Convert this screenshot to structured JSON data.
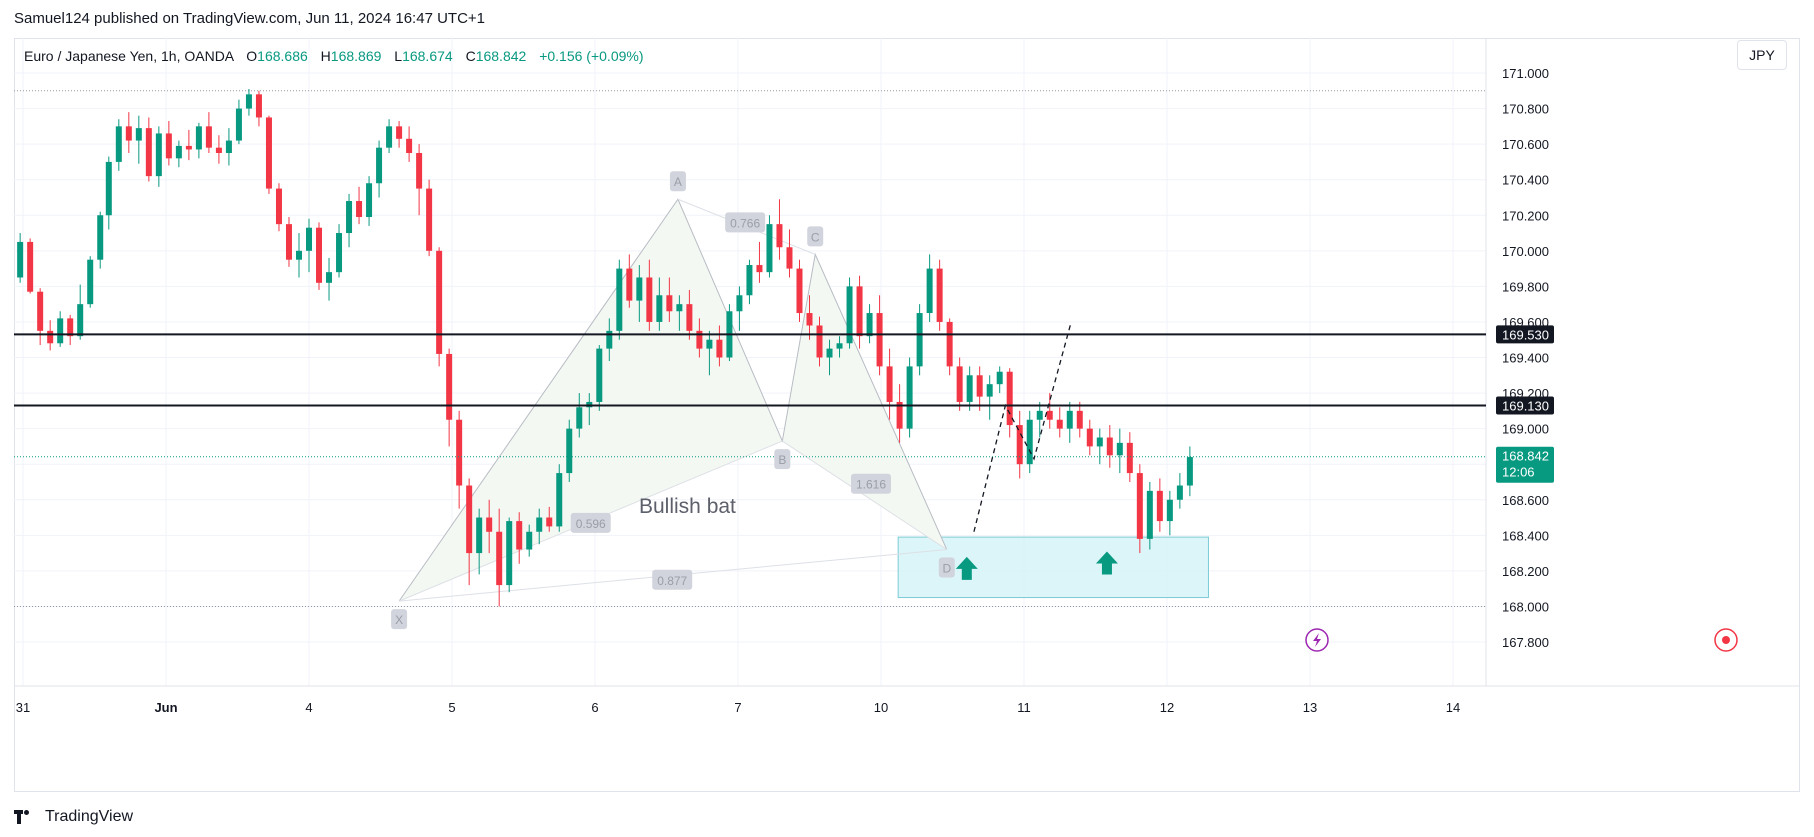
{
  "header": {
    "published": "Samuel124 published on TradingView.com, Jun 11, 2024 16:47 UTC+1"
  },
  "legend": {
    "symbol": "Euro / Japanese Yen, 1h, OANDA",
    "o_label": "O",
    "o_value": "168.686",
    "h_label": "H",
    "h_value": "168.869",
    "l_label": "L",
    "l_value": "168.674",
    "c_label": "C",
    "c_value": "168.842",
    "change": "+0.156 (+0.09%)"
  },
  "currency_button": "JPY",
  "brand": {
    "name": "TradingView"
  },
  "colors": {
    "up": "#089981",
    "down": "#F23645",
    "zone_fill": "#D3F3F7",
    "zone_border": "#7DCBD6",
    "pattern_fill": "#F4F8F2",
    "pattern_line": "#B8BCC4",
    "label_bg": "#D1D4DC",
    "label_text": "#9A9EA8",
    "hline": "#131722",
    "price_tag": "#089981",
    "alert_icon": "#9C27B0",
    "record_icon": "#F23645"
  },
  "chart_data": {
    "type": "candlestick",
    "instrument": "EUR/JPY",
    "timeframe": "1h",
    "y_axis": {
      "min": 167.7,
      "max": 171.1,
      "ticks": [
        "167.800",
        "168.000",
        "168.200",
        "168.400",
        "168.600",
        "168.800",
        "169.000",
        "169.200",
        "169.400",
        "169.600",
        "169.800",
        "170.000",
        "170.200",
        "170.400",
        "170.600",
        "170.800",
        "171.000"
      ]
    },
    "x_axis": {
      "labels": [
        {
          "t": -1.0,
          "label": "31"
        },
        {
          "t": 0.0,
          "label": "Jun"
        },
        {
          "t": 1.0,
          "label": "4"
        },
        {
          "t": 2.0,
          "label": "5"
        },
        {
          "t": 3.0,
          "label": "6"
        },
        {
          "t": 4.0,
          "label": "7"
        },
        {
          "t": 5.0,
          "label": "10"
        },
        {
          "t": 6.0,
          "label": "11"
        },
        {
          "t": 7.0,
          "label": "12"
        },
        {
          "t": 8.0,
          "label": "13"
        },
        {
          "t": 9.0,
          "label": "14"
        }
      ],
      "unit": "trading days (Jun 3 = 0)"
    },
    "horizontal_lines": [
      {
        "price": 169.53,
        "label": "169.530"
      },
      {
        "price": 169.13,
        "label": "169.130"
      }
    ],
    "dotted_levels": [
      170.9,
      168.0
    ],
    "last_price": {
      "price": 168.842,
      "label": "168.842",
      "countdown": "12:06"
    },
    "harmonic_pattern": {
      "name": "Bullish bat",
      "points": [
        {
          "label": "X",
          "t": 1.63,
          "price": 168.03
        },
        {
          "label": "A",
          "t": 3.58,
          "price": 170.29
        },
        {
          "label": "B",
          "t": 4.31,
          "price": 168.93
        },
        {
          "label": "C",
          "t": 4.54,
          "price": 169.98
        },
        {
          "label": "D",
          "t": 5.46,
          "price": 168.32
        }
      ],
      "ratios": [
        {
          "value": "0.596",
          "t": 2.97,
          "price": 168.47
        },
        {
          "value": "0.766",
          "t": 4.05,
          "price": 170.16
        },
        {
          "value": "1.616",
          "t": 4.93,
          "price": 168.69
        },
        {
          "value": "0.877",
          "t": 3.54,
          "price": 168.15
        }
      ]
    },
    "demand_zone": {
      "t1": 5.12,
      "t2": 7.29,
      "price_low": 168.05,
      "price_high": 168.39
    },
    "arrows": [
      {
        "t": 5.6,
        "price": 168.2
      },
      {
        "t": 6.58,
        "price": 168.23
      }
    ],
    "projection_path": [
      {
        "t": 5.65,
        "price": 168.42
      },
      {
        "t": 5.87,
        "price": 169.13
      },
      {
        "t": 6.07,
        "price": 168.83
      },
      {
        "t": 6.33,
        "price": 169.6
      }
    ],
    "candles": [
      [
        -1.16,
        169.87,
        169.89,
        169.81,
        169.84
      ],
      [
        -1.09,
        169.84,
        169.89,
        169.79,
        169.85
      ],
      [
        -1.02,
        169.85,
        170.1,
        169.82,
        170.05
      ],
      [
        -0.95,
        170.05,
        170.07,
        169.76,
        169.77
      ],
      [
        -0.88,
        169.77,
        169.79,
        169.47,
        169.55
      ],
      [
        -0.81,
        169.55,
        169.61,
        169.44,
        169.48
      ],
      [
        -0.74,
        169.48,
        169.66,
        169.46,
        169.62
      ],
      [
        -0.67,
        169.62,
        169.64,
        169.47,
        169.52
      ],
      [
        -0.6,
        169.52,
        169.81,
        169.5,
        169.7
      ],
      [
        -0.53,
        169.7,
        169.97,
        169.68,
        169.95
      ],
      [
        -0.46,
        169.95,
        170.22,
        169.9,
        170.2
      ],
      [
        -0.4,
        170.2,
        170.53,
        170.12,
        170.5
      ],
      [
        -0.33,
        170.5,
        170.74,
        170.45,
        170.7
      ],
      [
        -0.26,
        170.7,
        170.78,
        170.55,
        170.62
      ],
      [
        -0.19,
        170.62,
        170.76,
        170.49,
        170.69
      ],
      [
        -0.12,
        170.69,
        170.75,
        170.39,
        170.42
      ],
      [
        -0.05,
        170.42,
        170.7,
        170.36,
        170.66
      ],
      [
        0.02,
        170.66,
        170.73,
        170.48,
        170.52
      ],
      [
        0.09,
        170.52,
        170.62,
        170.47,
        170.59
      ],
      [
        0.16,
        170.59,
        170.68,
        170.51,
        170.57
      ],
      [
        0.23,
        170.57,
        170.72,
        170.52,
        170.7
      ],
      [
        0.3,
        170.7,
        170.78,
        170.55,
        170.58
      ],
      [
        0.37,
        170.58,
        170.65,
        170.49,
        170.55
      ],
      [
        0.44,
        170.55,
        170.69,
        170.48,
        170.62
      ],
      [
        0.51,
        170.62,
        170.85,
        170.6,
        170.8
      ],
      [
        0.58,
        170.8,
        170.91,
        170.76,
        170.88
      ],
      [
        0.65,
        170.88,
        170.9,
        170.7,
        170.75
      ],
      [
        0.72,
        170.75,
        170.76,
        170.32,
        170.35
      ],
      [
        0.79,
        170.35,
        170.38,
        170.11,
        170.15
      ],
      [
        0.86,
        170.15,
        170.19,
        169.91,
        169.95
      ],
      [
        0.93,
        169.95,
        170.1,
        169.85,
        170.0
      ],
      [
        1.0,
        170.0,
        170.18,
        169.88,
        170.13
      ],
      [
        1.07,
        170.13,
        170.16,
        169.78,
        169.82
      ],
      [
        1.14,
        169.82,
        169.96,
        169.72,
        169.88
      ],
      [
        1.21,
        169.88,
        170.15,
        169.85,
        170.1
      ],
      [
        1.28,
        170.1,
        170.32,
        170.02,
        170.28
      ],
      [
        1.35,
        170.28,
        170.36,
        170.15,
        170.19
      ],
      [
        1.42,
        170.19,
        170.42,
        170.14,
        170.38
      ],
      [
        1.49,
        170.38,
        170.62,
        170.3,
        170.58
      ],
      [
        1.56,
        170.58,
        170.74,
        170.55,
        170.7
      ],
      [
        1.63,
        170.7,
        170.73,
        170.58,
        170.63
      ],
      [
        1.7,
        170.63,
        170.7,
        170.5,
        170.55
      ],
      [
        1.77,
        170.55,
        170.6,
        170.2,
        170.35
      ],
      [
        1.84,
        170.35,
        170.4,
        169.97,
        170.0
      ],
      [
        1.91,
        170.0,
        170.02,
        169.35,
        169.42
      ],
      [
        1.98,
        169.42,
        169.45,
        168.9,
        169.05
      ],
      [
        2.05,
        169.05,
        169.1,
        168.55,
        168.68
      ],
      [
        2.12,
        168.68,
        168.72,
        168.12,
        168.3
      ],
      [
        2.19,
        168.3,
        168.55,
        168.18,
        168.5
      ],
      [
        2.26,
        168.5,
        168.6,
        168.3,
        168.42
      ],
      [
        2.33,
        168.42,
        168.55,
        168.0,
        168.12
      ],
      [
        2.4,
        168.12,
        168.5,
        168.08,
        168.48
      ],
      [
        2.47,
        168.48,
        168.53,
        168.24,
        168.32
      ],
      [
        2.54,
        168.32,
        168.46,
        168.28,
        168.42
      ],
      [
        2.61,
        168.42,
        168.55,
        168.35,
        168.5
      ],
      [
        2.68,
        168.5,
        168.56,
        168.42,
        168.45
      ],
      [
        2.75,
        168.45,
        168.8,
        168.42,
        168.75
      ],
      [
        2.82,
        168.75,
        169.05,
        168.7,
        169.0
      ],
      [
        2.89,
        169.0,
        169.2,
        168.95,
        169.12
      ],
      [
        2.96,
        169.12,
        169.2,
        169.02,
        169.15
      ],
      [
        3.03,
        169.15,
        169.47,
        169.1,
        169.45
      ],
      [
        3.1,
        169.45,
        169.62,
        169.38,
        169.55
      ],
      [
        3.17,
        169.55,
        169.95,
        169.5,
        169.9
      ],
      [
        3.24,
        169.9,
        169.98,
        169.68,
        169.72
      ],
      [
        3.31,
        169.72,
        169.92,
        169.6,
        169.85
      ],
      [
        3.38,
        169.85,
        169.95,
        169.55,
        169.6
      ],
      [
        3.45,
        169.6,
        169.85,
        169.55,
        169.75
      ],
      [
        3.52,
        169.75,
        169.85,
        169.6,
        169.66
      ],
      [
        3.59,
        169.66,
        169.75,
        169.55,
        169.7
      ],
      [
        3.66,
        169.7,
        169.78,
        169.5,
        169.55
      ],
      [
        3.73,
        169.55,
        169.62,
        169.4,
        169.45
      ],
      [
        3.8,
        169.45,
        169.55,
        169.3,
        169.5
      ],
      [
        3.87,
        169.5,
        169.58,
        169.35,
        169.4
      ],
      [
        3.94,
        169.4,
        169.7,
        169.38,
        169.66
      ],
      [
        4.01,
        169.66,
        169.8,
        169.55,
        169.75
      ],
      [
        4.08,
        169.75,
        169.95,
        169.7,
        169.92
      ],
      [
        4.15,
        169.92,
        170.05,
        169.82,
        169.88
      ],
      [
        4.22,
        169.88,
        170.2,
        169.85,
        170.15
      ],
      [
        4.29,
        170.15,
        170.29,
        169.95,
        170.02
      ],
      [
        4.36,
        170.02,
        170.12,
        169.85,
        169.9
      ],
      [
        4.43,
        169.9,
        169.95,
        169.6,
        169.65
      ],
      [
        4.5,
        169.65,
        169.75,
        169.5,
        169.58
      ],
      [
        4.57,
        169.58,
        169.63,
        169.35,
        169.4
      ],
      [
        4.64,
        169.4,
        169.5,
        169.3,
        169.45
      ],
      [
        4.71,
        169.45,
        169.52,
        169.4,
        169.48
      ],
      [
        4.78,
        169.48,
        169.85,
        169.45,
        169.8
      ],
      [
        4.85,
        169.8,
        169.86,
        169.45,
        169.52
      ],
      [
        4.92,
        169.52,
        169.7,
        169.48,
        169.65
      ],
      [
        4.99,
        169.65,
        169.75,
        169.3,
        169.35
      ],
      [
        5.06,
        169.35,
        169.45,
        169.05,
        169.15
      ],
      [
        5.13,
        169.15,
        169.25,
        168.92,
        169.0
      ],
      [
        5.2,
        169.0,
        169.4,
        168.95,
        169.35
      ],
      [
        5.27,
        169.35,
        169.7,
        169.3,
        169.65
      ],
      [
        5.34,
        169.65,
        169.98,
        169.6,
        169.9
      ],
      [
        5.41,
        169.9,
        169.95,
        169.55,
        169.6
      ],
      [
        5.48,
        169.6,
        169.62,
        169.3,
        169.35
      ],
      [
        5.55,
        169.35,
        169.4,
        169.1,
        169.15
      ],
      [
        5.62,
        169.15,
        169.35,
        169.1,
        169.3
      ],
      [
        5.69,
        169.3,
        169.35,
        169.1,
        169.18
      ],
      [
        5.76,
        169.18,
        169.3,
        169.05,
        169.25
      ],
      [
        5.83,
        169.25,
        169.35,
        169.2,
        169.32
      ],
      [
        5.9,
        169.32,
        169.34,
        168.95,
        169.02
      ],
      [
        5.97,
        169.02,
        169.1,
        168.72,
        168.8
      ],
      [
        6.04,
        168.8,
        169.1,
        168.75,
        169.05
      ],
      [
        6.11,
        169.05,
        169.15,
        168.95,
        169.1
      ],
      [
        6.18,
        169.1,
        169.2,
        169.0,
        169.05
      ],
      [
        6.25,
        169.05,
        169.12,
        168.95,
        169.0
      ],
      [
        6.32,
        169.0,
        169.15,
        168.92,
        169.1
      ],
      [
        6.39,
        169.1,
        169.15,
        168.95,
        169.0
      ],
      [
        6.46,
        169.0,
        169.05,
        168.85,
        168.9
      ],
      [
        6.53,
        168.9,
        169.0,
        168.8,
        168.95
      ],
      [
        6.6,
        168.95,
        169.02,
        168.78,
        168.85
      ],
      [
        6.67,
        168.85,
        169.0,
        168.75,
        168.92
      ],
      [
        6.74,
        168.92,
        168.98,
        168.7,
        168.75
      ],
      [
        6.81,
        168.75,
        168.8,
        168.3,
        168.38
      ],
      [
        6.88,
        168.38,
        168.7,
        168.32,
        168.65
      ],
      [
        6.95,
        168.65,
        168.72,
        168.42,
        168.48
      ],
      [
        7.02,
        168.48,
        168.65,
        168.4,
        168.6
      ],
      [
        7.09,
        168.6,
        168.75,
        168.55,
        168.68
      ],
      [
        7.16,
        168.68,
        168.9,
        168.62,
        168.84
      ]
    ]
  }
}
